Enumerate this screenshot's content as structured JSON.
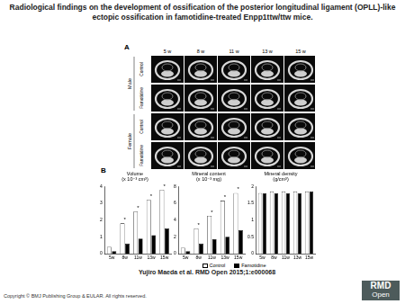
{
  "title": "Radiological findings on the development of ossification of the posterior longitudinal ligament (OPLL)-like ectopic ossification in famotidine-treated Enpp1ttw/ttw mice.",
  "panel_a": {
    "label": "A",
    "columns": [
      "5 w",
      "8 w",
      "11 w",
      "13 w",
      "15 w"
    ],
    "groups": [
      {
        "name": "Male",
        "rows": [
          "Control",
          "Famotidine"
        ]
      },
      {
        "name": "Female",
        "rows": [
          "Control",
          "Famotidine"
        ]
      }
    ]
  },
  "panel_b_label": "B",
  "chart_data": [
    {
      "type": "bar",
      "title": "Volume",
      "subtitle": "(x 10⁻³ cm³)",
      "categories": [
        "5w",
        "8w",
        "11w",
        "13w",
        "15w"
      ],
      "series": [
        {
          "name": "Control",
          "color": "#ffffff",
          "values": [
            0.4,
            1.8,
            2.5,
            3.2,
            3.8
          ]
        },
        {
          "name": "Famotidine",
          "color": "#000000",
          "values": [
            0.15,
            0.6,
            0.9,
            1.1,
            1.5
          ]
        }
      ],
      "ylim": [
        0,
        4
      ],
      "yticks": [
        0,
        1,
        2,
        3,
        4
      ],
      "grid": false,
      "annotations": [
        {
          "category": "8w",
          "text": "*"
        },
        {
          "category": "11w",
          "text": "*"
        },
        {
          "category": "13w",
          "text": "*"
        },
        {
          "category": "15w",
          "text": "*"
        }
      ]
    },
    {
      "type": "bar",
      "title": "Mineral content",
      "subtitle": "(x 10⁻³ mg)",
      "categories": [
        "5w",
        "8w",
        "11w",
        "13w",
        "15w"
      ],
      "series": [
        {
          "name": "Control",
          "color": "#ffffff",
          "values": [
            0.7,
            3,
            4.5,
            6.3,
            7.2
          ]
        },
        {
          "name": "Famotidine",
          "color": "#000000",
          "values": [
            0.3,
            1.2,
            1.7,
            2,
            2.8
          ]
        }
      ],
      "ylim": [
        0,
        8
      ],
      "yticks": [
        0,
        2,
        4,
        6,
        8
      ],
      "grid": false,
      "annotations": [
        {
          "category": "8w",
          "text": "*"
        },
        {
          "category": "11w",
          "text": "*"
        },
        {
          "category": "13w",
          "text": "*"
        },
        {
          "category": "15w",
          "text": "*"
        }
      ]
    },
    {
      "type": "bar",
      "title": "Mineral density",
      "subtitle": "(g/cm³)",
      "categories": [
        "5w",
        "8w",
        "11w",
        "13w",
        "15w"
      ],
      "series": [
        {
          "name": "Control",
          "color": "#ffffff",
          "values": [
            1.8,
            1.85,
            1.85,
            1.85,
            1.85
          ]
        },
        {
          "name": "Famotidine",
          "color": "#000000",
          "values": [
            1.8,
            1.8,
            1.8,
            1.8,
            1.85
          ]
        }
      ],
      "ylim": [
        0,
        2
      ],
      "yticks": [
        0,
        0.5,
        1,
        1.5,
        2
      ],
      "grid": false
    }
  ],
  "citation": "Yujiro Maeda et al. RMD Open 2015;1:e000068",
  "copyright": "Copyright © BMJ Publishing Group & EULAR. All rights reserved.",
  "logo": {
    "line1": "RMD",
    "line2": "Open"
  }
}
